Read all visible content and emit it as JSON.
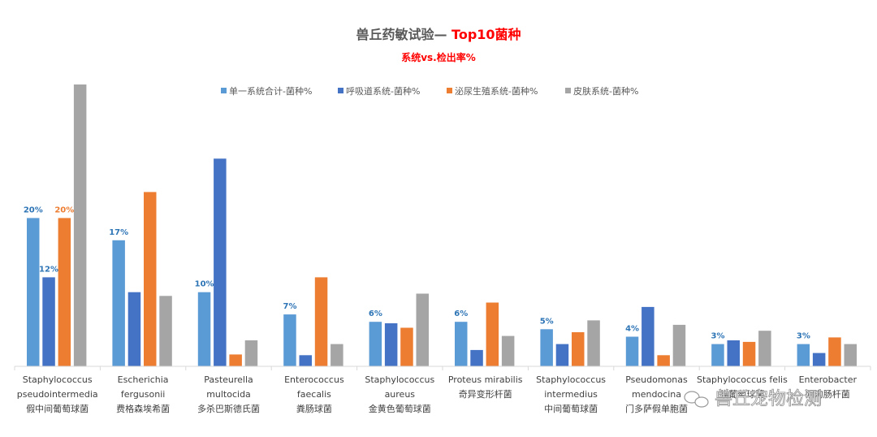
{
  "chart_data": {
    "type": "bar",
    "title_main": "兽丘药敏试验— ",
    "title_highlight": "Top10菌种",
    "subtitle": "系统vs.检出率%",
    "ylim": [
      0,
      38
    ],
    "legend_position": "top",
    "series": [
      {
        "name": "单一系统合计-菌种%",
        "color": "#5b9bd5",
        "values": [
          20,
          17,
          10,
          7,
          6,
          6,
          5,
          4,
          3,
          3
        ],
        "labels": [
          "20%",
          "17%",
          "10%",
          "7%",
          "6%",
          "6%",
          "5%",
          "4%",
          "3%",
          "3%"
        ],
        "label_color": "#2e75b6"
      },
      {
        "name": "呼吸道系统-菌种%",
        "color": "#4472c4",
        "values": [
          12,
          10,
          28,
          1.5,
          5.8,
          2.2,
          3,
          8,
          3.5,
          1.8
        ],
        "labels": [
          "12%",
          "",
          "",
          "",
          "",
          "",
          "",
          "",
          "",
          ""
        ],
        "label_color": "#2e75b6"
      },
      {
        "name": "泌尿生殖系统-菌种%",
        "color": "#ed7d31",
        "values": [
          20,
          23.5,
          1.6,
          12,
          5.2,
          8.6,
          4.6,
          1.5,
          3.3,
          3.9
        ],
        "labels": [
          "20%",
          "",
          "",
          "",
          "",
          "",
          "",
          "",
          "",
          ""
        ],
        "label_color": "#ed7d31"
      },
      {
        "name": "皮肤系统-菌种%",
        "color": "#a5a5a5",
        "values": [
          38,
          9.5,
          3.5,
          3,
          9.8,
          4.1,
          6.2,
          5.6,
          4.8,
          3
        ]
      }
    ],
    "categories": [
      [
        "Staphylococcus",
        "pseudointermedia",
        "假中间葡萄球菌"
      ],
      [
        "Escherichia",
        "fergusonii",
        "费格森埃希菌"
      ],
      [
        "Pasteurella",
        "multocida",
        "多杀巴斯德氏菌"
      ],
      [
        "Enterococcus",
        "faecalis",
        "粪肠球菌"
      ],
      [
        "Staphylococcus",
        "aureus",
        "金黄色葡萄球菌"
      ],
      [
        "Proteus mirabilis",
        "奇异变形杆菌"
      ],
      [
        "Staphylococcus",
        "intermedius",
        "中间葡萄球菌"
      ],
      [
        "Pseudomonas",
        "mendocina",
        "门多萨假单胞菌"
      ],
      [
        "Staphylococcus felis",
        "猫葡萄球菌"
      ],
      [
        "Enterobacter",
        "阴沟肠杆菌"
      ]
    ]
  },
  "watermark": {
    "text": "兽丘宠物检测",
    "icon": "wechat-icon"
  }
}
